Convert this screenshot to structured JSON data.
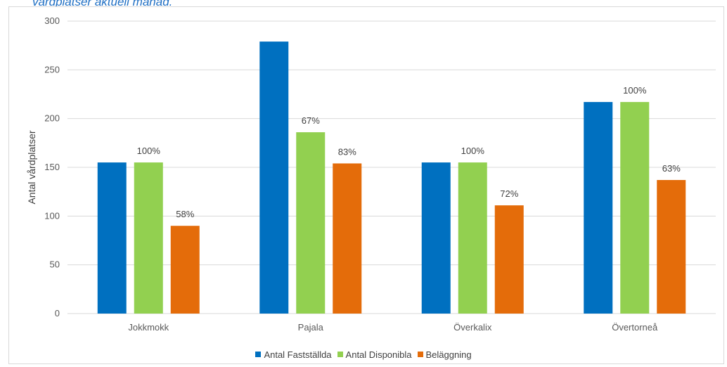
{
  "heading": "vårdplatser aktuell månad.",
  "chart_data": {
    "type": "bar",
    "categories": [
      "Jokkmokk",
      "Pajala",
      "Överkalix",
      "Övertorneå"
    ],
    "series": [
      {
        "name": "Antal Fastställda",
        "color": "#0070c0",
        "values": [
          155,
          279,
          155,
          217
        ]
      },
      {
        "name": "Antal Disponibla",
        "color": "#92d050",
        "values": [
          155,
          186,
          155,
          217
        ],
        "labels": [
          "100%",
          "67%",
          "100%",
          "100%"
        ]
      },
      {
        "name": "Beläggning",
        "color": "#e46c0a",
        "values": [
          90,
          154,
          111,
          137
        ],
        "labels": [
          "58%",
          "83%",
          "72%",
          "63%"
        ]
      }
    ],
    "ylabel": "Antal vårdplatser",
    "xlabel": "",
    "ylim": [
      0,
      300
    ],
    "yticks": [
      0,
      50,
      100,
      150,
      200,
      250,
      300
    ],
    "grid": true,
    "legend_position": "bottom"
  }
}
